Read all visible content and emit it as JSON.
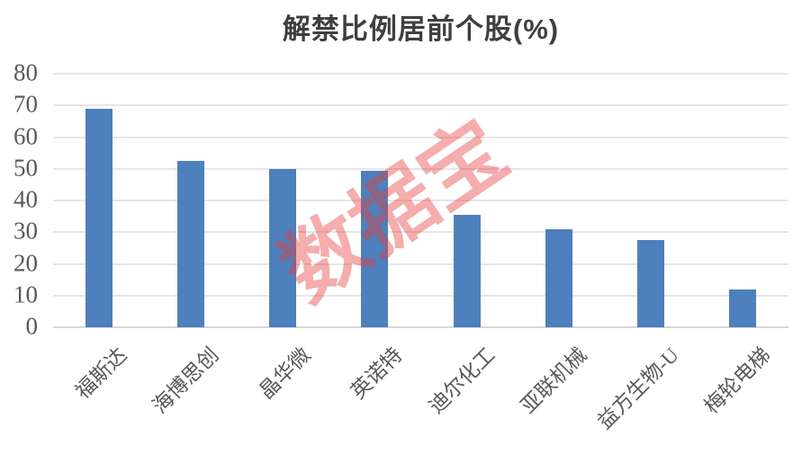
{
  "chart_data": {
    "type": "bar",
    "title": "解禁比例居前个股(%)",
    "categories": [
      "福斯达",
      "海博思创",
      "晶华微",
      "英诺特",
      "迪尔化工",
      "亚联机械",
      "益方生物-U",
      "梅轮电梯"
    ],
    "values": [
      69,
      52.5,
      50,
      49.5,
      35.5,
      31,
      27.5,
      12
    ],
    "xlabel": "",
    "ylabel": "",
    "ylim": [
      0,
      80
    ],
    "yticks": [
      0,
      10,
      20,
      30,
      40,
      50,
      60,
      70,
      80
    ],
    "grid": true,
    "legend_position": "none",
    "bar_color": "#4d80bc",
    "gridline_color": "#e6e6e6",
    "axis_line_color": "#d7d7d7",
    "tick_label_color": "#595959",
    "title_color": "#3f3f3f",
    "watermark": "数据宝",
    "watermark_color": "#e63c3c"
  }
}
